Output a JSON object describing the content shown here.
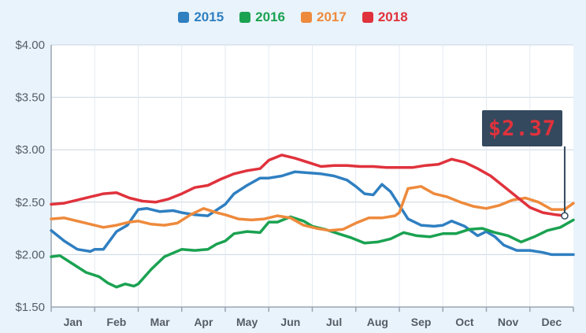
{
  "chart_data": {
    "type": "line",
    "title": "",
    "xlabel": "",
    "ylabel": "",
    "categories": [
      "Jan",
      "Feb",
      "Mar",
      "Apr",
      "May",
      "Jun",
      "Jul",
      "Aug",
      "Sep",
      "Oct",
      "Nov",
      "Dec"
    ],
    "ylim": [
      1.5,
      4.0
    ],
    "yticks": [
      1.5,
      2.0,
      2.5,
      3.0,
      3.5,
      4.0
    ],
    "ytick_labels": [
      "$1.50",
      "$2.00",
      "$2.50",
      "$3.00",
      "$3.50",
      "$4.00"
    ],
    "grid": true,
    "legend_position": "top",
    "series": [
      {
        "name": "2015",
        "color": "#2f7fc1",
        "x": [
          0,
          0.3,
          0.6,
          0.9,
          1.0,
          1.2,
          1.5,
          1.75,
          2.0,
          2.2,
          2.5,
          2.8,
          3.0,
          3.3,
          3.6,
          4.0,
          4.2,
          4.5,
          4.8,
          5.0,
          5.3,
          5.6,
          5.9,
          6.2,
          6.5,
          6.8,
          7.0,
          7.2,
          7.4,
          7.6,
          7.8,
          8.0,
          8.2,
          8.5,
          8.8,
          9.0,
          9.2,
          9.5,
          9.8,
          10.0,
          10.2,
          10.4,
          10.7,
          11.0,
          11.3,
          11.5,
          11.8,
          12.0
        ],
        "values": [
          2.23,
          2.13,
          2.05,
          2.03,
          2.05,
          2.05,
          2.22,
          2.28,
          2.43,
          2.44,
          2.41,
          2.42,
          2.4,
          2.38,
          2.37,
          2.48,
          2.58,
          2.66,
          2.73,
          2.73,
          2.75,
          2.79,
          2.78,
          2.77,
          2.75,
          2.71,
          2.65,
          2.58,
          2.57,
          2.67,
          2.6,
          2.47,
          2.34,
          2.28,
          2.27,
          2.28,
          2.32,
          2.27,
          2.18,
          2.22,
          2.17,
          2.09,
          2.04,
          2.04,
          2.02,
          2.0,
          2.0,
          2.0
        ]
      },
      {
        "name": "2016",
        "color": "#1aa251",
        "x": [
          0,
          0.2,
          0.5,
          0.8,
          1.1,
          1.3,
          1.5,
          1.7,
          1.9,
          2.0,
          2.3,
          2.6,
          3.0,
          3.3,
          3.6,
          3.8,
          4.0,
          4.2,
          4.5,
          4.8,
          5.0,
          5.2,
          5.5,
          5.8,
          6.0,
          6.3,
          6.6,
          6.9,
          7.2,
          7.5,
          7.8,
          8.1,
          8.4,
          8.7,
          9.0,
          9.3,
          9.6,
          9.9,
          10.2,
          10.5,
          10.8,
          11.1,
          11.4,
          11.7,
          12.0
        ],
        "values": [
          1.98,
          1.99,
          1.91,
          1.83,
          1.79,
          1.73,
          1.69,
          1.72,
          1.7,
          1.72,
          1.86,
          1.98,
          2.05,
          2.04,
          2.05,
          2.1,
          2.13,
          2.2,
          2.22,
          2.21,
          2.31,
          2.31,
          2.36,
          2.32,
          2.27,
          2.24,
          2.2,
          2.16,
          2.11,
          2.12,
          2.15,
          2.21,
          2.18,
          2.17,
          2.2,
          2.2,
          2.24,
          2.25,
          2.21,
          2.18,
          2.12,
          2.17,
          2.23,
          2.26,
          2.33
        ]
      },
      {
        "name": "2017",
        "color": "#ee8a3c",
        "x": [
          0,
          0.3,
          0.6,
          0.9,
          1.2,
          1.5,
          1.8,
          2.0,
          2.3,
          2.6,
          2.9,
          3.2,
          3.5,
          3.8,
          4.0,
          4.3,
          4.6,
          4.9,
          5.2,
          5.5,
          5.8,
          6.1,
          6.4,
          6.7,
          7.0,
          7.3,
          7.6,
          7.9,
          8.0,
          8.2,
          8.5,
          8.8,
          9.1,
          9.4,
          9.7,
          10.0,
          10.3,
          10.6,
          10.9,
          11.2,
          11.5,
          11.8,
          12.0
        ],
        "values": [
          2.34,
          2.35,
          2.32,
          2.29,
          2.26,
          2.28,
          2.31,
          2.32,
          2.29,
          2.28,
          2.3,
          2.38,
          2.44,
          2.4,
          2.38,
          2.34,
          2.33,
          2.34,
          2.37,
          2.35,
          2.28,
          2.25,
          2.23,
          2.24,
          2.3,
          2.35,
          2.35,
          2.37,
          2.4,
          2.63,
          2.65,
          2.58,
          2.55,
          2.5,
          2.46,
          2.44,
          2.47,
          2.52,
          2.54,
          2.5,
          2.43,
          2.43,
          2.49
        ]
      },
      {
        "name": "2018",
        "color": "#e0323c",
        "x": [
          0,
          0.3,
          0.6,
          0.9,
          1.2,
          1.5,
          1.8,
          2.1,
          2.4,
          2.7,
          3.0,
          3.3,
          3.6,
          3.9,
          4.2,
          4.5,
          4.8,
          5.0,
          5.3,
          5.6,
          5.9,
          6.2,
          6.5,
          6.8,
          7.1,
          7.4,
          7.7,
          8.0,
          8.3,
          8.6,
          8.9,
          9.2,
          9.5,
          9.8,
          10.1,
          10.4,
          10.7,
          11.0,
          11.3,
          11.6,
          11.8
        ],
        "values": [
          2.48,
          2.49,
          2.52,
          2.55,
          2.58,
          2.59,
          2.54,
          2.51,
          2.5,
          2.53,
          2.58,
          2.64,
          2.66,
          2.72,
          2.77,
          2.8,
          2.82,
          2.9,
          2.95,
          2.92,
          2.88,
          2.84,
          2.85,
          2.85,
          2.84,
          2.84,
          2.83,
          2.83,
          2.83,
          2.85,
          2.86,
          2.91,
          2.88,
          2.82,
          2.75,
          2.65,
          2.55,
          2.45,
          2.4,
          2.38,
          2.37
        ]
      }
    ],
    "annotation": {
      "text": "$2.37",
      "x": 11.8,
      "y": 2.37,
      "series": "2018"
    }
  }
}
